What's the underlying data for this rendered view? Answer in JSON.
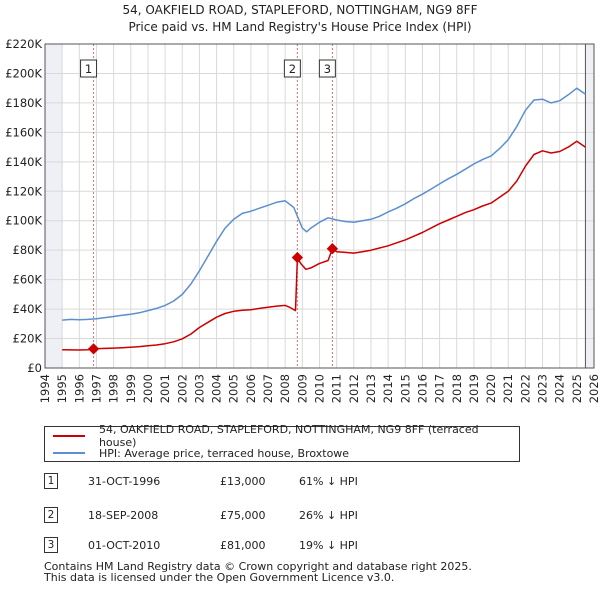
{
  "chart_data": {
    "type": "line",
    "title": "54, OAKFIELD ROAD, STAPLEFORD, NOTTINGHAM, NG9 8FF",
    "subtitle": "Price paid vs. HM Land Registry's House Price Index (HPI)",
    "xlabel": "",
    "ylabel": "",
    "xlim": [
      1994,
      2026
    ],
    "ylim": [
      0,
      220000
    ],
    "x_ticks": [
      1994,
      1995,
      1996,
      1997,
      1998,
      1999,
      2000,
      2001,
      2002,
      2003,
      2004,
      2005,
      2006,
      2007,
      2008,
      2009,
      2010,
      2011,
      2012,
      2013,
      2014,
      2015,
      2016,
      2017,
      2018,
      2019,
      2020,
      2021,
      2022,
      2023,
      2024,
      2025,
      2026
    ],
    "y_ticks": [
      {
        "value": 0,
        "label": "£0"
      },
      {
        "value": 20000,
        "label": "£20K"
      },
      {
        "value": 40000,
        "label": "£40K"
      },
      {
        "value": 60000,
        "label": "£60K"
      },
      {
        "value": 80000,
        "label": "£80K"
      },
      {
        "value": 100000,
        "label": "£100K"
      },
      {
        "value": 120000,
        "label": "£120K"
      },
      {
        "value": 140000,
        "label": "£140K"
      },
      {
        "value": 160000,
        "label": "£160K"
      },
      {
        "value": 180000,
        "label": "£180K"
      },
      {
        "value": 200000,
        "label": "£200K"
      },
      {
        "value": 220000,
        "label": "£220K"
      }
    ],
    "grid": true,
    "data_start_year": 1995,
    "data_end_year": 2025.5,
    "series": [
      {
        "name": "54, OAKFIELD ROAD, STAPLEFORD, NOTTINGHAM, NG9 8FF (terraced house)",
        "color": "#cc0000",
        "points": [
          [
            1995.0,
            12400
          ],
          [
            1995.5,
            12300
          ],
          [
            1996.0,
            12200
          ],
          [
            1996.5,
            12400
          ],
          [
            1996.83,
            13000
          ],
          [
            1997.5,
            13300
          ],
          [
            1998.0,
            13500
          ],
          [
            1998.5,
            13800
          ],
          [
            1999.0,
            14100
          ],
          [
            1999.5,
            14500
          ],
          [
            2000.0,
            15100
          ],
          [
            2000.5,
            15600
          ],
          [
            2001.0,
            16500
          ],
          [
            2001.5,
            17800
          ],
          [
            2002.0,
            19800
          ],
          [
            2002.5,
            23000
          ],
          [
            2003.0,
            27500
          ],
          [
            2003.5,
            31000
          ],
          [
            2004.0,
            34500
          ],
          [
            2004.5,
            37000
          ],
          [
            2005.0,
            38500
          ],
          [
            2005.5,
            39200
          ],
          [
            2006.0,
            39500
          ],
          [
            2006.5,
            40500
          ],
          [
            2007.0,
            41200
          ],
          [
            2007.5,
            42000
          ],
          [
            2008.0,
            42500
          ],
          [
            2008.3,
            41000
          ],
          [
            2008.6,
            39000
          ],
          [
            2008.71,
            75000
          ],
          [
            2008.9,
            71000
          ],
          [
            2009.2,
            67000
          ],
          [
            2009.5,
            68000
          ],
          [
            2010.0,
            71000
          ],
          [
            2010.5,
            73000
          ],
          [
            2010.75,
            81000
          ],
          [
            2011.0,
            79000
          ],
          [
            2011.5,
            78500
          ],
          [
            2012.0,
            78000
          ],
          [
            2012.5,
            79000
          ],
          [
            2013.0,
            80000
          ],
          [
            2013.5,
            81500
          ],
          [
            2014.0,
            83000
          ],
          [
            2014.5,
            85000
          ],
          [
            2015.0,
            87000
          ],
          [
            2015.5,
            89500
          ],
          [
            2016.0,
            92000
          ],
          [
            2016.5,
            95000
          ],
          [
            2017.0,
            98000
          ],
          [
            2017.5,
            100500
          ],
          [
            2018.0,
            103000
          ],
          [
            2018.5,
            105500
          ],
          [
            2019.0,
            107500
          ],
          [
            2019.5,
            110000
          ],
          [
            2020.0,
            112000
          ],
          [
            2020.5,
            116000
          ],
          [
            2021.0,
            120000
          ],
          [
            2021.5,
            127000
          ],
          [
            2022.0,
            137000
          ],
          [
            2022.5,
            145000
          ],
          [
            2023.0,
            147500
          ],
          [
            2023.5,
            146000
          ],
          [
            2024.0,
            147000
          ],
          [
            2024.5,
            150000
          ],
          [
            2025.0,
            154000
          ],
          [
            2025.5,
            150000
          ]
        ]
      },
      {
        "name": "HPI: Average price, terraced house, Broxtowe",
        "color": "#5b8fd0",
        "points": [
          [
            1995.0,
            32500
          ],
          [
            1995.5,
            33000
          ],
          [
            1996.0,
            32800
          ],
          [
            1996.5,
            33000
          ],
          [
            1997.0,
            33500
          ],
          [
            1997.5,
            34200
          ],
          [
            1998.0,
            35000
          ],
          [
            1998.5,
            35800
          ],
          [
            1999.0,
            36500
          ],
          [
            1999.5,
            37500
          ],
          [
            2000.0,
            39000
          ],
          [
            2000.5,
            40500
          ],
          [
            2001.0,
            42500
          ],
          [
            2001.5,
            45500
          ],
          [
            2002.0,
            50000
          ],
          [
            2002.5,
            57000
          ],
          [
            2003.0,
            66000
          ],
          [
            2003.5,
            76000
          ],
          [
            2004.0,
            86000
          ],
          [
            2004.5,
            95000
          ],
          [
            2005.0,
            101000
          ],
          [
            2005.5,
            105000
          ],
          [
            2006.0,
            106500
          ],
          [
            2006.5,
            108500
          ],
          [
            2007.0,
            110500
          ],
          [
            2007.5,
            112500
          ],
          [
            2008.0,
            113500
          ],
          [
            2008.5,
            109000
          ],
          [
            2009.0,
            95000
          ],
          [
            2009.25,
            92500
          ],
          [
            2009.5,
            95000
          ],
          [
            2010.0,
            99000
          ],
          [
            2010.5,
            102000
          ],
          [
            2011.0,
            100500
          ],
          [
            2011.5,
            99500
          ],
          [
            2012.0,
            99000
          ],
          [
            2012.5,
            100000
          ],
          [
            2013.0,
            101000
          ],
          [
            2013.5,
            103000
          ],
          [
            2014.0,
            106000
          ],
          [
            2014.5,
            108500
          ],
          [
            2015.0,
            111500
          ],
          [
            2015.5,
            115000
          ],
          [
            2016.0,
            118000
          ],
          [
            2016.5,
            121500
          ],
          [
            2017.0,
            125000
          ],
          [
            2017.5,
            128500
          ],
          [
            2018.0,
            131500
          ],
          [
            2018.5,
            135000
          ],
          [
            2019.0,
            138500
          ],
          [
            2019.5,
            141500
          ],
          [
            2020.0,
            144000
          ],
          [
            2020.5,
            149000
          ],
          [
            2021.0,
            155000
          ],
          [
            2021.5,
            164000
          ],
          [
            2022.0,
            175000
          ],
          [
            2022.5,
            182000
          ],
          [
            2023.0,
            182500
          ],
          [
            2023.5,
            180000
          ],
          [
            2024.0,
            181500
          ],
          [
            2024.5,
            185500
          ],
          [
            2025.0,
            190000
          ],
          [
            2025.5,
            186000
          ]
        ]
      }
    ],
    "annotations": [
      {
        "label": "1",
        "x": 1996.83,
        "y": 13000
      },
      {
        "label": "2",
        "x": 2008.71,
        "y": 75000
      },
      {
        "label": "3",
        "x": 2010.75,
        "y": 81000
      }
    ]
  },
  "legend": {
    "items": [
      {
        "label": "54, OAKFIELD ROAD, STAPLEFORD, NOTTINGHAM, NG9 8FF (terraced house)",
        "color": "#cc0000"
      },
      {
        "label": "HPI: Average price, terraced house, Broxtowe",
        "color": "#5b8fd0"
      }
    ]
  },
  "sales": [
    {
      "num": "1",
      "date": "31-OCT-1996",
      "price": "£13,000",
      "hpi": "61% ↓ HPI"
    },
    {
      "num": "2",
      "date": "18-SEP-2008",
      "price": "£75,000",
      "hpi": "26% ↓ HPI"
    },
    {
      "num": "3",
      "date": "01-OCT-2010",
      "price": "£81,000",
      "hpi": "19% ↓ HPI"
    }
  ],
  "footer": {
    "line1": "Contains HM Land Registry data © Crown copyright and database right 2025.",
    "line2": "This data is licensed under the Open Government Licence v3.0."
  }
}
